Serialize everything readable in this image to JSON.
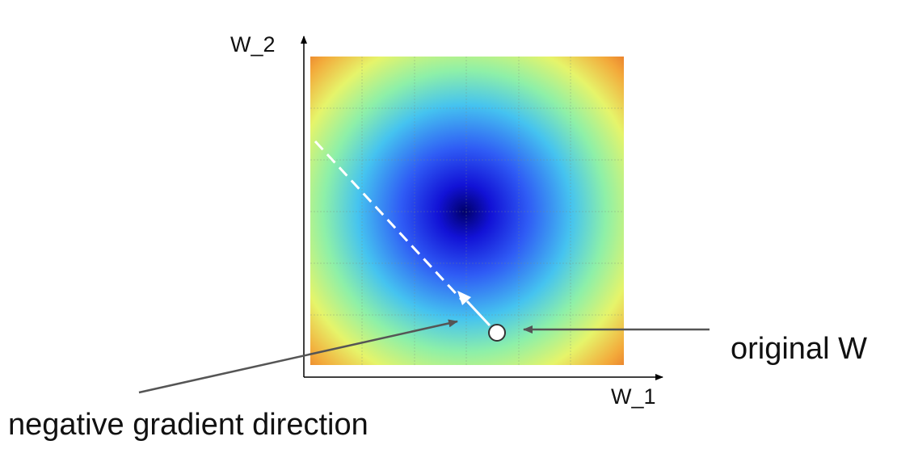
{
  "labels": {
    "y_axis": "W_2",
    "x_axis": "W_1",
    "original_w": "original W",
    "gradient": "negative gradient direction"
  },
  "colors": {
    "axis": "#000000",
    "pointer": "#555555",
    "step_arrow": "#ffffff",
    "point_fill": "#ffffff",
    "point_stroke": "#333333",
    "heat_low": "#00006a",
    "heat_high": "#d42a0a"
  }
}
